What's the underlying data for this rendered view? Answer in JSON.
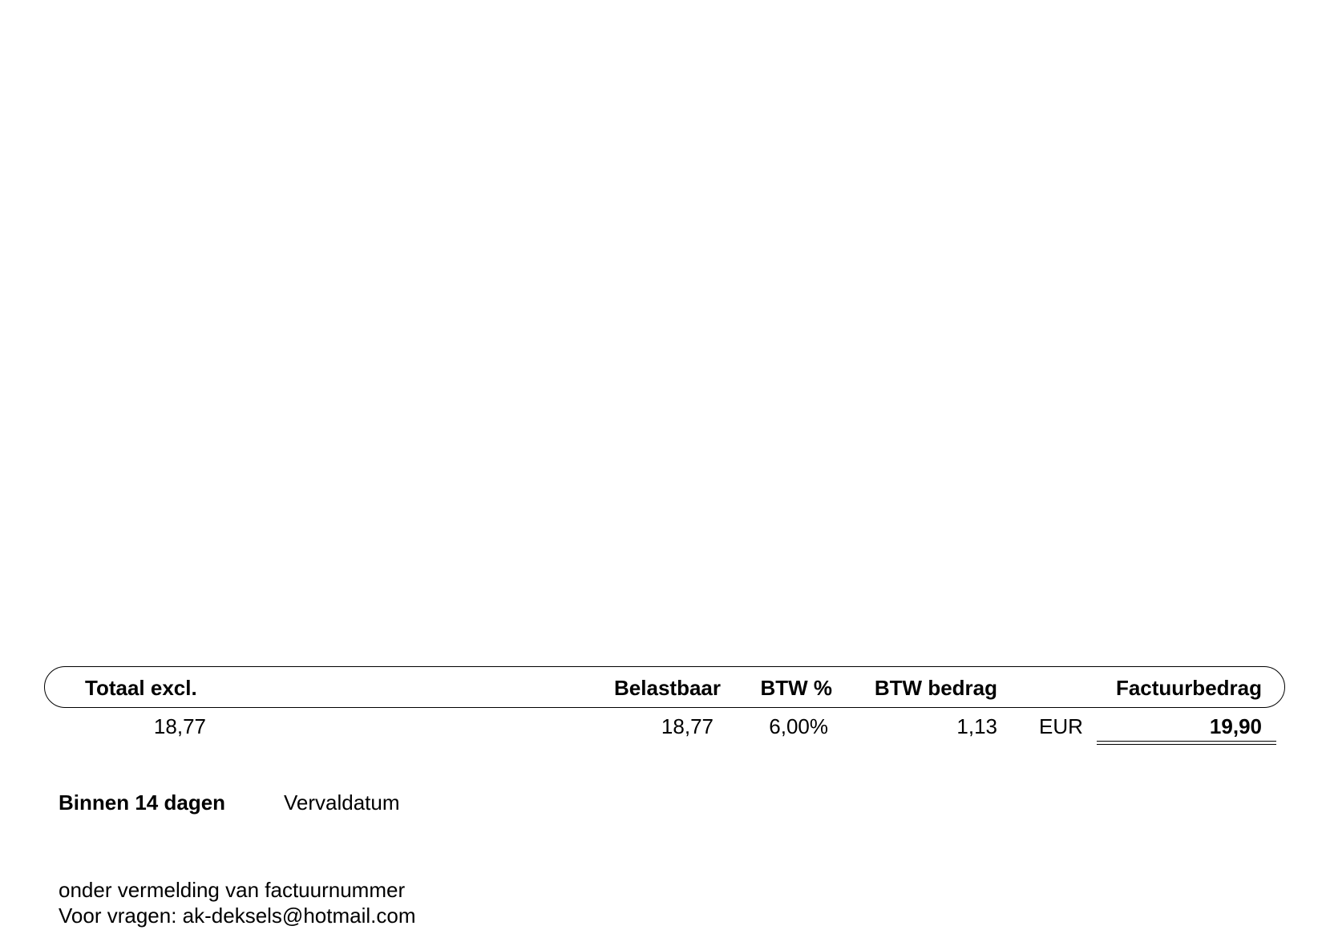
{
  "summary": {
    "headers": {
      "totaal_excl": "Totaal excl.",
      "belastbaar": "Belastbaar",
      "btw_pct": "BTW %",
      "btw_bedrag": "BTW bedrag",
      "factuurbedrag": "Factuurbedrag"
    },
    "values": {
      "totaal_excl": "18,77",
      "belastbaar": "18,77",
      "btw_pct": "6,00%",
      "btw_bedrag": "1,13",
      "currency": "EUR",
      "factuurbedrag": "19,90"
    }
  },
  "payment": {
    "term": "Binnen 14 dagen",
    "due_label": "Vervaldatum"
  },
  "notes": {
    "line1": "onder vermelding van factuurnummer",
    "line2": "Voor vragen: ak-deksels@hotmail.com"
  }
}
